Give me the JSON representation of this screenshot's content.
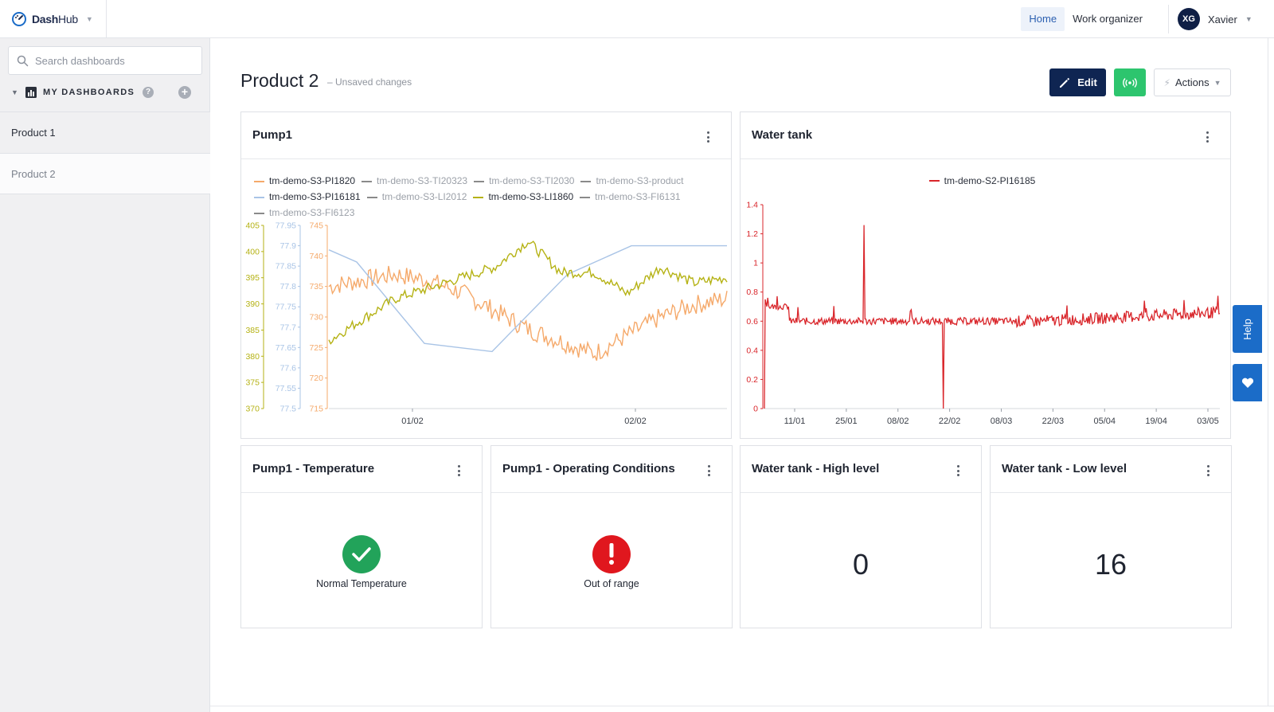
{
  "app": {
    "name_bold": "Dash",
    "name_rest": "Hub"
  },
  "topnav": {
    "home": "Home",
    "work_organizer": "Work organizer"
  },
  "user": {
    "initials": "XG",
    "name": "Xavier"
  },
  "sidebar": {
    "search_placeholder": "Search dashboards",
    "section_label": "MY DASHBOARDS",
    "help_glyph": "?",
    "items": [
      {
        "label": "Product 1"
      },
      {
        "label": "Product 2"
      }
    ]
  },
  "page": {
    "title": "Product 2",
    "subtitle": "– Unsaved changes",
    "edit_label": "Edit",
    "actions_label": "Actions"
  },
  "widgets": {
    "pump1": {
      "title": "Pump1",
      "legend": [
        {
          "name": "tm-demo-S3-PI1820",
          "color": "#f5a96a",
          "active": true
        },
        {
          "name": "tm-demo-S3-TI20323",
          "color": "#8a8a8a",
          "active": false
        },
        {
          "name": "tm-demo-S3-TI2030",
          "color": "#8a8a8a",
          "active": false
        },
        {
          "name": "tm-demo-S3-product",
          "color": "#8a8a8a",
          "active": false
        },
        {
          "name": "tm-demo-S3-PI16181",
          "color": "#a9c4e6",
          "active": true
        },
        {
          "name": "tm-demo-S3-LI2012",
          "color": "#8a8a8a",
          "active": false
        },
        {
          "name": "tm-demo-S3-LI1860",
          "color": "#b5b214",
          "active": true
        },
        {
          "name": "tm-demo-S3-FI6131",
          "color": "#8a8a8a",
          "active": false
        },
        {
          "name": "tm-demo-S3-FI6123",
          "color": "#8a8a8a",
          "active": false
        }
      ]
    },
    "water_tank": {
      "title": "Water tank",
      "legend": [
        {
          "name": "tm-demo-S2-PI16185",
          "color": "#d9262b"
        }
      ]
    },
    "pump1_temperature": {
      "title": "Pump1 - Temperature",
      "status_text": "Normal Temperature",
      "status_color": "#22a35a",
      "icon": "check-icon"
    },
    "pump1_operating": {
      "title": "Pump1 - Operating Conditions",
      "status_text": "Out of range",
      "status_color": "#e0171e",
      "icon": "exclamation-icon"
    },
    "water_high": {
      "title": "Water tank - High level",
      "value": "0"
    },
    "water_low": {
      "title": "Water tank - Low level",
      "value": "16"
    }
  },
  "help_tab": {
    "label": "Help"
  },
  "chart_data": [
    {
      "type": "line",
      "title": "Pump1",
      "x_tick_labels": [
        "01/02",
        "02/02"
      ],
      "y_axes": [
        {
          "color": "#b5b214",
          "ticks": [
            405,
            400,
            395,
            390,
            385,
            380,
            375,
            370
          ],
          "range": [
            370,
            405
          ]
        },
        {
          "color": "#a9c4e6",
          "ticks": [
            77.95,
            77.9,
            77.85,
            77.8,
            77.75,
            77.7,
            77.65,
            77.6,
            77.55,
            77.5
          ],
          "range": [
            77.5,
            77.95
          ]
        },
        {
          "color": "#f5a96a",
          "ticks": [
            745,
            740,
            735,
            730,
            725,
            720,
            715
          ],
          "range": [
            715,
            745
          ]
        }
      ],
      "series": [
        {
          "name": "tm-demo-S3-PI1820",
          "color": "#f5a96a",
          "axis": 2,
          "start": 735,
          "end": 733,
          "anchors": [
            735,
            736,
            737,
            736,
            734,
            731,
            728,
            726,
            724,
            727,
            730,
            732,
            733
          ],
          "noise": 1.6
        },
        {
          "name": "tm-demo-S3-PI16181",
          "color": "#a9c4e6",
          "axis": 1,
          "x": [
            0,
            0.07,
            0.24,
            0.41,
            0.6,
            0.76,
            1.0
          ],
          "y": [
            77.89,
            77.86,
            77.66,
            77.64,
            77.83,
            77.9,
            77.9
          ]
        },
        {
          "name": "tm-demo-S3-LI1860",
          "color": "#b5b214",
          "axis": 0,
          "start": 383,
          "end": 395,
          "anchors": [
            383,
            387,
            391,
            393,
            395,
            397,
            402,
            396,
            396,
            392,
            397,
            394,
            395
          ],
          "noise": 1.0
        }
      ]
    },
    {
      "type": "line",
      "title": "Water tank",
      "x_tick_labels": [
        "11/01",
        "25/01",
        "08/02",
        "22/02",
        "08/03",
        "22/03",
        "05/04",
        "19/04",
        "03/05"
      ],
      "y_ticks": [
        1.4,
        1.2,
        1,
        0.8,
        0.6,
        0.4,
        0.2,
        0
      ],
      "ylim": [
        0,
        1.4
      ],
      "series": [
        {
          "name": "tm-demo-S2-PI16185",
          "color": "#d9262b",
          "base": 0.6,
          "spikes": [
            {
              "x": 0.215,
              "y": 1.26
            },
            {
              "x": 0.39,
              "y": 0.0
            }
          ]
        }
      ]
    }
  ]
}
